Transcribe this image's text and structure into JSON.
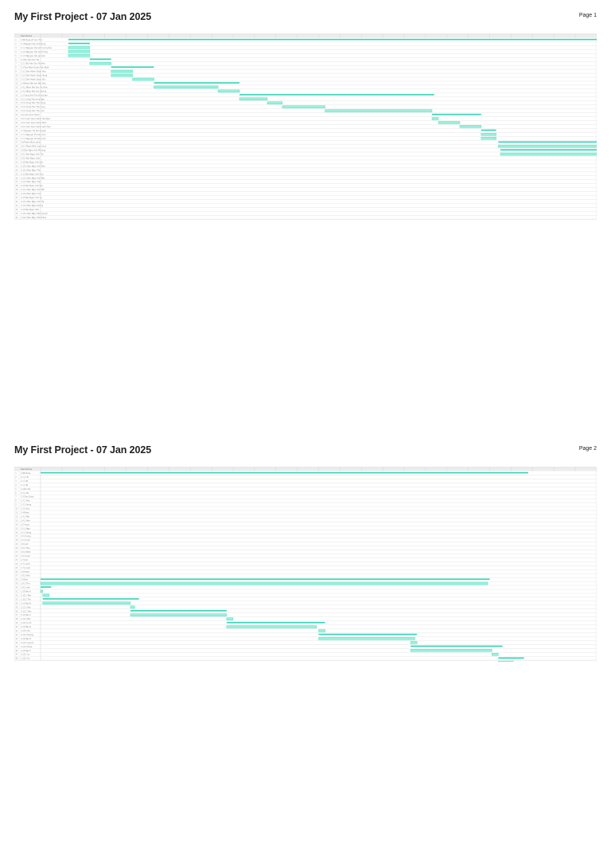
{
  "colors": {
    "bar": "#55e2c6",
    "bar_fill": "#9af0dc",
    "summary": "#2fd4b4",
    "grid": "#e6e6e6",
    "header": "#ececec"
  },
  "pages": [
    {
      "title": "My First Project - 07 Jan 2025",
      "page_label": "Page 1",
      "header_label": "Task Name",
      "tasks": [
        "1 Bill Rose (E. Sun Till)",
        "1.1 Nguyen Van Anh Sung",
        "1.1.1 Nguyen Van Anh Linh phan",
        "1.1.2 Nguyen Van Anh Hung",
        "1.1.3 Nguyen Van gia bao",
        "1.2 Bui Van Duc Tai",
        "1.2.1 Bui Van Duc Tai tien",
        "1.3 Dao Manh Quan Van Nhat",
        "1.3.1 Dao Manh Quan Hoa",
        "1.3.2 Dao Manh Quan Hung",
        "1.3.3 Dao Manh Quan Duc",
        "1.4 Nhan Mai Van Mai Hoa",
        "1.4.1 Nhan Mai Van Thu Mai",
        "1.4.2 Nhan Mai Van Le Hoa",
        "1.5 Vung Tran Thu Hong Van",
        "1.5.1 Vung Tran Hoa Nga",
        "1.5.2 Vung Tran Thu Hung",
        "1.5.3 Vung Tran Thu Long",
        "1.5.4 Vung Tran Thu Linh",
        "1.6 Lam Quoc Danh",
        "1.6.1 Lam Quoc Danh Hoa Nhu",
        "1.6.2 Lam Quoc Danh Minh",
        "1.6.3 Lam Quoc Danh Lam Hoa",
        "1.7 Nguyen Thi Kim Quyet",
        "1.7.1 Nguyen Thi Kim Anh",
        "1.7.2 Nguyen Thi Kim Linh",
        "1.8 Pham Minh Lanh",
        "1.8.1 Pham Minh Lanh Hoa",
        "1.9 Bao Ngoc Anh Phuong",
        "1.9.1 Bao Ngoc Anh Thu",
        "1.9.2 Bao Ngoc Lam",
        "1.10 Bao Ngoc Anh Lan",
        "1.10.1 Bao Ngoc Anh Tam",
        "1.10.2 Bao Ngoc Thu",
        "1.11 Bao Ngoc Anh Hoa",
        "1.11.1 Bao Ngoc Anh Mai",
        "1.11.2 Bao Ngoc Tien",
        "1.12 Bao Ngoc Anh Duc",
        "1.12.1 Bao Ngoc Anh Nhi",
        "1.12.2 Bao Ngoc Linh",
        "1.13 Bao Ngoc Anh Vy",
        "1.13.1 Bao Ngoc Anh Ha",
        "1.13.2 Bao Ngoc Khang",
        "1.14 Bao Ngoc Tam",
        "1.14.1 Bao Ngoc Tam Quynh",
        "1.14.2 Bao Ngoc Tam Khoa"
      ]
    },
    {
      "title": "My First Project - 07 Jan 2025",
      "page_label": "Page 2",
      "header_label": "Task Name",
      "tasks": [
        "1 Bill Rose",
        "1.1 A. Bi",
        "1.1.1 Bi",
        "1.1.2 Bi",
        "1.2 Bui Tai",
        "1.2.1 Tai",
        "1.3 Dao Quan",
        "1.3.1 Hoa",
        "1.3.2 Hung",
        "1.3.3 Duc",
        "1.4 Nhan",
        "1.4.1 Mai",
        "1.4.2 Hoa",
        "1.5 Vung",
        "1.5.1 Nga",
        "1.5.2 Hung",
        "1.5.3 Long",
        "1.5.4 Linh",
        "1.6 Lam",
        "1.6.1 Hoa",
        "1.6.2 Minh",
        "1.6.3 Lam",
        "1.7 Kim",
        "1.7.1 Anh",
        "1.7.2 Linh",
        "1.8 Pham",
        "1.8.1 Hoa",
        "1.9 Bao",
        "1.9.1 Thu",
        "1.9.2 Lam",
        "1.10 Bao A",
        "1.10.1 Tam",
        "1.10.2 Thu",
        "1.11 Bao B",
        "1.11.1 Mai",
        "1.11.2 Tien",
        "1.12 Bao C",
        "1.12.1 Nhi",
        "1.12.2 Linh",
        "1.13 Bao D",
        "1.13.1 Ha",
        "1.13.2 Khang",
        "1.14 Bao E",
        "1.14.1 Quynh",
        "1.14.2 Khoa",
        "1.15 Bao F",
        "1.15.1 Le",
        "1.15.2 Vu"
      ]
    }
  ],
  "chart_data": [
    {
      "type": "gantt",
      "title": "My First Project - 07 Jan 2025",
      "page": "Page 1",
      "time_units": 26,
      "bars": [
        {
          "row": 0,
          "start": 1.3,
          "end": 26.0,
          "summary": true
        },
        {
          "row": 1,
          "start": 1.3,
          "end": 2.3,
          "summary": true
        },
        {
          "row": 2,
          "start": 1.3,
          "end": 2.3
        },
        {
          "row": 3,
          "start": 1.3,
          "end": 2.3
        },
        {
          "row": 4,
          "start": 1.3,
          "end": 2.3
        },
        {
          "row": 5,
          "start": 2.3,
          "end": 3.3,
          "summary": true
        },
        {
          "row": 6,
          "start": 2.3,
          "end": 3.3
        },
        {
          "row": 7,
          "start": 3.3,
          "end": 5.3,
          "summary": true
        },
        {
          "row": 8,
          "start": 3.3,
          "end": 4.3
        },
        {
          "row": 9,
          "start": 3.3,
          "end": 4.3
        },
        {
          "row": 10,
          "start": 4.3,
          "end": 5.3
        },
        {
          "row": 11,
          "start": 5.3,
          "end": 9.3,
          "summary": true
        },
        {
          "row": 12,
          "start": 5.3,
          "end": 8.3
        },
        {
          "row": 13,
          "start": 8.3,
          "end": 9.3
        },
        {
          "row": 14,
          "start": 9.3,
          "end": 18.4,
          "summary": true
        },
        {
          "row": 15,
          "start": 9.3,
          "end": 10.6
        },
        {
          "row": 16,
          "start": 10.6,
          "end": 11.3
        },
        {
          "row": 17,
          "start": 11.3,
          "end": 13.3
        },
        {
          "row": 18,
          "start": 13.3,
          "end": 18.3
        },
        {
          "row": 19,
          "start": 18.3,
          "end": 20.6,
          "summary": true
        },
        {
          "row": 20,
          "start": 18.3,
          "end": 18.6
        },
        {
          "row": 21,
          "start": 18.6,
          "end": 19.6
        },
        {
          "row": 22,
          "start": 19.6,
          "end": 20.6
        },
        {
          "row": 23,
          "start": 20.6,
          "end": 21.3,
          "summary": true
        },
        {
          "row": 24,
          "start": 20.6,
          "end": 21.3
        },
        {
          "row": 25,
          "start": 20.6,
          "end": 21.3
        },
        {
          "row": 26,
          "start": 21.4,
          "end": 26.0,
          "summary": true
        },
        {
          "row": 27,
          "start": 21.4,
          "end": 26.0
        },
        {
          "row": 28,
          "start": 21.5,
          "end": 26.0,
          "summary": true
        },
        {
          "row": 29,
          "start": 21.5,
          "end": 26.0
        }
      ]
    },
    {
      "type": "gantt",
      "title": "My First Project - 07 Jan 2025",
      "page": "Page 2",
      "time_units": 26,
      "bars": [
        {
          "row": 0,
          "start": 0.0,
          "end": 22.8,
          "summary": true
        },
        {
          "row": 27,
          "start": 0.0,
          "end": 21.0,
          "summary": true
        },
        {
          "row": 28,
          "start": 0.0,
          "end": 20.9
        },
        {
          "row": 29,
          "start": 0.0,
          "end": 0.5,
          "summary": true
        },
        {
          "row": 30,
          "start": 0.0,
          "end": 0.1
        },
        {
          "row": 31,
          "start": 0.1,
          "end": 0.4
        },
        {
          "row": 32,
          "start": 0.1,
          "end": 4.6,
          "summary": true
        },
        {
          "row": 33,
          "start": 0.1,
          "end": 4.2
        },
        {
          "row": 34,
          "start": 4.2,
          "end": 4.4
        },
        {
          "row": 35,
          "start": 4.2,
          "end": 8.7,
          "summary": true
        },
        {
          "row": 36,
          "start": 4.2,
          "end": 8.7
        },
        {
          "row": 37,
          "start": 8.7,
          "end": 9.0
        },
        {
          "row": 38,
          "start": 8.7,
          "end": 13.3,
          "summary": true
        },
        {
          "row": 39,
          "start": 8.7,
          "end": 12.9
        },
        {
          "row": 40,
          "start": 13.0,
          "end": 13.3
        },
        {
          "row": 41,
          "start": 13.0,
          "end": 17.6,
          "summary": true
        },
        {
          "row": 42,
          "start": 13.0,
          "end": 17.5
        },
        {
          "row": 43,
          "start": 17.3,
          "end": 17.6
        },
        {
          "row": 44,
          "start": 17.3,
          "end": 21.6,
          "summary": true
        },
        {
          "row": 45,
          "start": 17.3,
          "end": 21.1
        },
        {
          "row": 46,
          "start": 21.1,
          "end": 21.4
        },
        {
          "row": 47,
          "start": 21.4,
          "end": 22.6,
          "summary": true
        },
        {
          "row": 48,
          "start": 21.4,
          "end": 22.1
        },
        {
          "row": 49,
          "start": 22.1,
          "end": 22.5
        }
      ]
    }
  ]
}
